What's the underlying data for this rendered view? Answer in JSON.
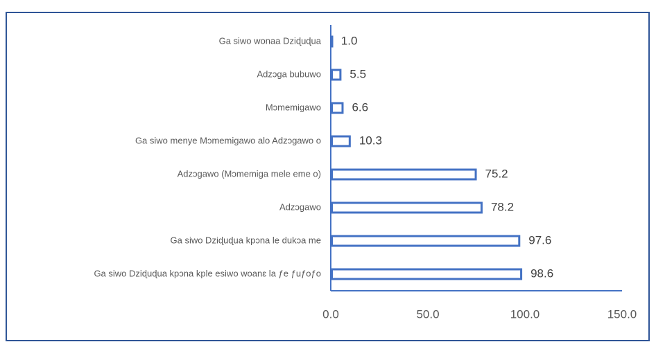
{
  "chart_data": {
    "type": "bar",
    "orientation": "horizontal",
    "categories": [
      "Ga siwo wonaa Dziɖuɖua",
      "Adzɔga bubuwo",
      "Mɔmemigawo",
      "Ga siwo menye Mɔmemigawo alo  Adzɔgawo o",
      "Adzɔgawo (Mɔmemiga mele eme o)",
      "Adzɔgawo",
      "Ga siwo Dziɖuɖua kpɔna le dukɔa me",
      "Ga siwo Dziɖuɖua kpɔna  kple esiwo woanɛ la ƒe ƒuƒoƒo"
    ],
    "values": [
      1.0,
      5.5,
      6.6,
      10.3,
      75.2,
      78.2,
      97.6,
      98.6
    ],
    "value_labels": [
      "1.0",
      "5.5",
      "6.6",
      "10.3",
      "75.2",
      "78.2",
      "97.6",
      "98.6"
    ],
    "color": "#4472c4",
    "xlim": [
      0,
      150
    ],
    "xticks": [
      {
        "value": 0,
        "label": "0.0"
      },
      {
        "value": 50,
        "label": "50.0"
      },
      {
        "value": 100,
        "label": "100.0"
      },
      {
        "value": 150,
        "label": "150.0"
      }
    ]
  }
}
